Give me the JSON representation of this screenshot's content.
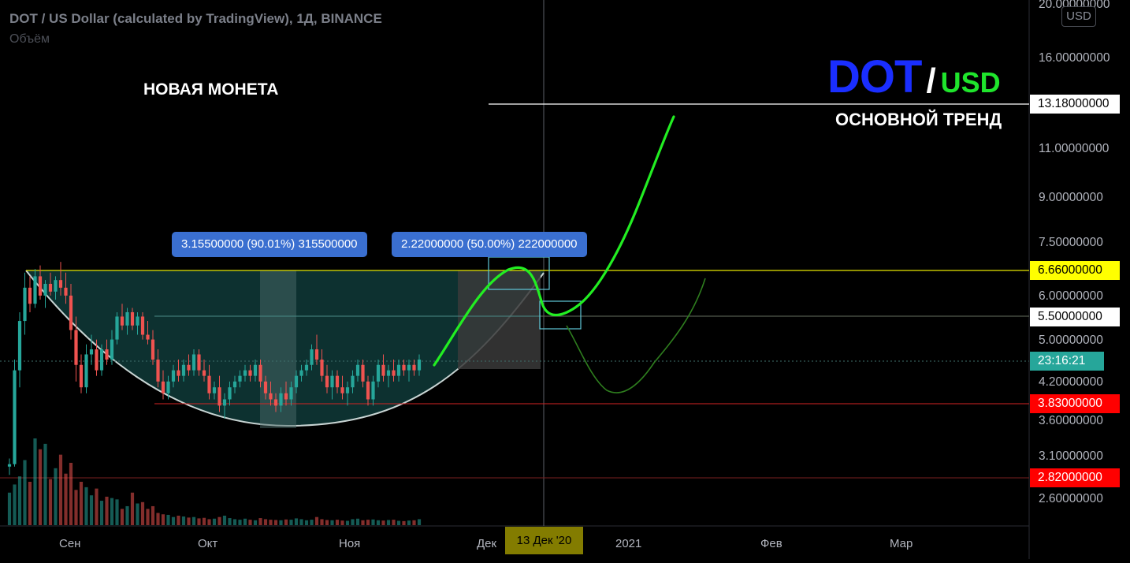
{
  "header": {
    "symbol_title": "DOT / US Dollar (calculated by TradingView), 1Д, BINANCE",
    "volume_label": "Объём",
    "currency_button": "USD"
  },
  "annotations": {
    "new_coin": "НОВАЯ МОНЕТА",
    "pair_base": "DOT",
    "pair_slash": "/",
    "pair_quote": "USD",
    "main_trend": "ОСНОВНОЙ ТРЕНД",
    "measure_left": "3.15500000 (90.01%) 315500000",
    "measure_right": "2.22000000 (50.00%) 222000000"
  },
  "price_axis": {
    "ticks": [
      "20.00000000",
      "16.00000000",
      "11.00000000",
      "9.00000000",
      "7.50000000",
      "6.00000000",
      "5.00000000",
      "4.20000000",
      "3.60000000",
      "3.10000000",
      "2.60000000"
    ]
  },
  "price_labels": [
    {
      "text": "13.18000000",
      "bg": "#ffffff",
      "fg": "#000000"
    },
    {
      "text": "6.66000000",
      "bg": "#ffff00",
      "fg": "#000000"
    },
    {
      "text": "5.50000000",
      "bg": "#ffffff",
      "fg": "#000000"
    },
    {
      "text": "23:16:21",
      "bg": "#26a69a",
      "fg": "#ffffff"
    },
    {
      "text": "3.83000000",
      "bg": "#ff0000",
      "fg": "#ffffff"
    },
    {
      "text": "2.82000000",
      "bg": "#ff0000",
      "fg": "#ffffff"
    }
  ],
  "time_axis": {
    "ticks": [
      "Сен",
      "Окт",
      "Ноя",
      "Дек",
      "2021",
      "Фев",
      "Мар"
    ],
    "crosshair_label": "13 Дек '20"
  },
  "colors": {
    "up": "#26a69a",
    "down": "#ef5350",
    "forecast": "#22ee22",
    "alt_forecast": "#2e7d1e",
    "cup_fill": "#0f3a38",
    "background": "#000000"
  },
  "chart_data": {
    "type": "candlestick",
    "symbol": "DOT/USD",
    "timeframe": "1Д",
    "exchange": "BINANCE",
    "scale": "log",
    "ylim": [
      2.2,
      21
    ],
    "candles": [
      {
        "o": 2.95,
        "h": 3.05,
        "l": 2.85,
        "c": 2.98
      },
      {
        "o": 2.98,
        "h": 4.6,
        "l": 2.95,
        "c": 4.4
      },
      {
        "o": 4.4,
        "h": 5.6,
        "l": 4.1,
        "c": 5.4
      },
      {
        "o": 5.4,
        "h": 6.6,
        "l": 5.1,
        "c": 6.2
      },
      {
        "o": 6.2,
        "h": 6.5,
        "l": 5.6,
        "c": 5.8
      },
      {
        "o": 5.8,
        "h": 6.7,
        "l": 5.7,
        "c": 6.5
      },
      {
        "o": 6.5,
        "h": 6.8,
        "l": 5.9,
        "c": 6.0
      },
      {
        "o": 6.0,
        "h": 6.4,
        "l": 5.7,
        "c": 6.3
      },
      {
        "o": 6.3,
        "h": 6.6,
        "l": 6.0,
        "c": 6.1
      },
      {
        "o": 6.1,
        "h": 6.5,
        "l": 5.9,
        "c": 6.4
      },
      {
        "o": 6.4,
        "h": 6.9,
        "l": 6.0,
        "c": 6.2
      },
      {
        "o": 6.2,
        "h": 6.6,
        "l": 5.8,
        "c": 6.0
      },
      {
        "o": 6.0,
        "h": 6.3,
        "l": 5.0,
        "c": 5.2
      },
      {
        "o": 5.2,
        "h": 5.5,
        "l": 4.2,
        "c": 4.5
      },
      {
        "o": 4.5,
        "h": 4.7,
        "l": 4.0,
        "c": 4.1
      },
      {
        "o": 4.1,
        "h": 4.9,
        "l": 4.0,
        "c": 4.7
      },
      {
        "o": 4.7,
        "h": 5.1,
        "l": 4.5,
        "c": 4.8
      },
      {
        "o": 4.8,
        "h": 5.0,
        "l": 4.3,
        "c": 4.4
      },
      {
        "o": 4.4,
        "h": 4.9,
        "l": 4.3,
        "c": 4.8
      },
      {
        "o": 4.8,
        "h": 5.0,
        "l": 4.5,
        "c": 4.6
      },
      {
        "o": 4.6,
        "h": 5.2,
        "l": 4.5,
        "c": 5.0
      },
      {
        "o": 5.0,
        "h": 5.6,
        "l": 4.9,
        "c": 5.5
      },
      {
        "o": 5.5,
        "h": 5.8,
        "l": 5.2,
        "c": 5.3
      },
      {
        "o": 5.3,
        "h": 5.7,
        "l": 5.1,
        "c": 5.6
      },
      {
        "o": 5.6,
        "h": 5.7,
        "l": 5.2,
        "c": 5.3
      },
      {
        "o": 5.3,
        "h": 5.6,
        "l": 5.1,
        "c": 5.5
      },
      {
        "o": 5.5,
        "h": 5.6,
        "l": 5.0,
        "c": 5.1
      },
      {
        "o": 5.1,
        "h": 5.4,
        "l": 4.9,
        "c": 5.0
      },
      {
        "o": 5.0,
        "h": 5.2,
        "l": 4.5,
        "c": 4.6
      },
      {
        "o": 4.6,
        "h": 4.8,
        "l": 4.1,
        "c": 4.2
      },
      {
        "o": 4.2,
        "h": 4.4,
        "l": 3.9,
        "c": 4.0
      },
      {
        "o": 4.0,
        "h": 4.3,
        "l": 3.9,
        "c": 4.2
      },
      {
        "o": 4.2,
        "h": 4.5,
        "l": 4.1,
        "c": 4.4
      },
      {
        "o": 4.4,
        "h": 4.6,
        "l": 4.2,
        "c": 4.3
      },
      {
        "o": 4.3,
        "h": 4.6,
        "l": 4.2,
        "c": 4.5
      },
      {
        "o": 4.5,
        "h": 4.7,
        "l": 4.3,
        "c": 4.4
      },
      {
        "o": 4.4,
        "h": 4.8,
        "l": 4.3,
        "c": 4.7
      },
      {
        "o": 4.7,
        "h": 4.8,
        "l": 4.3,
        "c": 4.4
      },
      {
        "o": 4.4,
        "h": 4.6,
        "l": 4.2,
        "c": 4.3
      },
      {
        "o": 4.3,
        "h": 4.5,
        "l": 3.9,
        "c": 4.0
      },
      {
        "o": 4.0,
        "h": 4.2,
        "l": 3.9,
        "c": 4.1
      },
      {
        "o": 4.1,
        "h": 4.3,
        "l": 3.7,
        "c": 3.8
      },
      {
        "o": 3.8,
        "h": 4.0,
        "l": 3.6,
        "c": 3.9
      },
      {
        "o": 3.9,
        "h": 4.2,
        "l": 3.8,
        "c": 4.1
      },
      {
        "o": 4.1,
        "h": 4.3,
        "l": 4.0,
        "c": 4.2
      },
      {
        "o": 4.2,
        "h": 4.4,
        "l": 4.1,
        "c": 4.3
      },
      {
        "o": 4.3,
        "h": 4.5,
        "l": 4.2,
        "c": 4.4
      },
      {
        "o": 4.4,
        "h": 4.5,
        "l": 4.2,
        "c": 4.3
      },
      {
        "o": 4.3,
        "h": 4.6,
        "l": 4.2,
        "c": 4.5
      },
      {
        "o": 4.5,
        "h": 4.6,
        "l": 4.1,
        "c": 4.2
      },
      {
        "o": 4.2,
        "h": 4.3,
        "l": 3.9,
        "c": 4.0
      },
      {
        "o": 4.0,
        "h": 4.2,
        "l": 3.8,
        "c": 3.9
      },
      {
        "o": 3.9,
        "h": 4.0,
        "l": 3.7,
        "c": 3.8
      },
      {
        "o": 3.8,
        "h": 4.1,
        "l": 3.7,
        "c": 4.0
      },
      {
        "o": 4.0,
        "h": 4.2,
        "l": 3.8,
        "c": 3.9
      },
      {
        "o": 3.9,
        "h": 4.2,
        "l": 3.8,
        "c": 4.1
      },
      {
        "o": 4.1,
        "h": 4.4,
        "l": 4.0,
        "c": 4.3
      },
      {
        "o": 4.3,
        "h": 4.5,
        "l": 4.2,
        "c": 4.4
      },
      {
        "o": 4.4,
        "h": 4.6,
        "l": 4.3,
        "c": 4.5
      },
      {
        "o": 4.5,
        "h": 4.9,
        "l": 4.4,
        "c": 4.8
      },
      {
        "o": 4.8,
        "h": 5.1,
        "l": 4.5,
        "c": 4.6
      },
      {
        "o": 4.6,
        "h": 4.8,
        "l": 4.2,
        "c": 4.3
      },
      {
        "o": 4.3,
        "h": 4.5,
        "l": 4.0,
        "c": 4.1
      },
      {
        "o": 4.1,
        "h": 4.4,
        "l": 3.9,
        "c": 4.3
      },
      {
        "o": 4.3,
        "h": 4.4,
        "l": 4.0,
        "c": 4.1
      },
      {
        "o": 4.1,
        "h": 4.3,
        "l": 3.9,
        "c": 4.0
      },
      {
        "o": 4.0,
        "h": 4.2,
        "l": 3.8,
        "c": 4.1
      },
      {
        "o": 4.1,
        "h": 4.4,
        "l": 4.0,
        "c": 4.3
      },
      {
        "o": 4.3,
        "h": 4.6,
        "l": 4.2,
        "c": 4.5
      },
      {
        "o": 4.5,
        "h": 4.6,
        "l": 4.1,
        "c": 4.2
      },
      {
        "o": 4.2,
        "h": 4.3,
        "l": 3.8,
        "c": 3.9
      },
      {
        "o": 3.9,
        "h": 4.3,
        "l": 3.8,
        "c": 4.2
      },
      {
        "o": 4.2,
        "h": 4.6,
        "l": 4.1,
        "c": 4.5
      },
      {
        "o": 4.5,
        "h": 4.7,
        "l": 4.2,
        "c": 4.3
      },
      {
        "o": 4.3,
        "h": 4.5,
        "l": 4.1,
        "c": 4.4
      },
      {
        "o": 4.4,
        "h": 4.6,
        "l": 4.2,
        "c": 4.3
      },
      {
        "o": 4.3,
        "h": 4.6,
        "l": 4.2,
        "c": 4.5
      },
      {
        "o": 4.5,
        "h": 4.6,
        "l": 4.3,
        "c": 4.4
      },
      {
        "o": 4.4,
        "h": 4.6,
        "l": 4.2,
        "c": 4.5
      },
      {
        "o": 4.5,
        "h": 4.6,
        "l": 4.3,
        "c": 4.4
      },
      {
        "o": 4.4,
        "h": 4.7,
        "l": 4.3,
        "c": 4.6
      }
    ],
    "volume": [
      120,
      150,
      180,
      240,
      160,
      320,
      280,
      300,
      170,
      210,
      260,
      190,
      230,
      130,
      160,
      140,
      110,
      135,
      90,
      105,
      100,
      95,
      60,
      70,
      120,
      80,
      85,
      60,
      70,
      45,
      40,
      38,
      30,
      35,
      32,
      28,
      30,
      25,
      27,
      22,
      24,
      30,
      35,
      26,
      22,
      20,
      24,
      20,
      18,
      26,
      22,
      20,
      19,
      18,
      21,
      20,
      25,
      22,
      18,
      20,
      30,
      22,
      19,
      18,
      20,
      17,
      16,
      22,
      24,
      18,
      20,
      21,
      18,
      17,
      19,
      20,
      16,
      15,
      17,
      18,
      22
    ],
    "horizontal_levels": [
      13.18,
      6.66,
      5.5,
      3.83,
      2.82
    ],
    "last_price": 4.6
  }
}
